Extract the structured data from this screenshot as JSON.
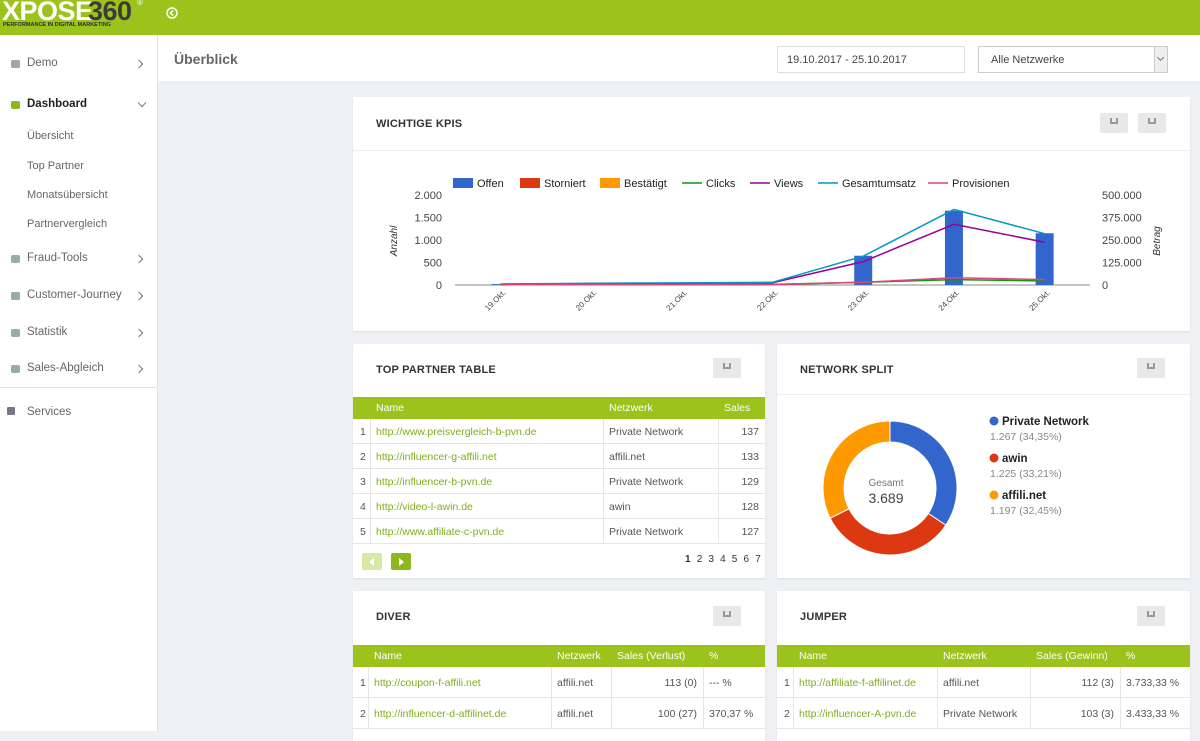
{
  "header": {
    "logo": [
      "XPOSE",
      "360",
      "®"
    ],
    "logo_tagline": "PERFORMANCE IN DIGITAL MARKETING"
  },
  "sidebar": {
    "items": [
      {
        "label": "Demo"
      },
      {
        "label": "Dashboard",
        "children": [
          "Übersicht",
          "Top Partner",
          "Monatsübersicht",
          "Partnervergleich"
        ]
      },
      {
        "label": "Fraud-Tools"
      },
      {
        "label": "Customer-Journey"
      },
      {
        "label": "Statistik"
      },
      {
        "label": "Sales-Abgleich"
      }
    ],
    "footer_item": "Services"
  },
  "toolbar": {
    "title": "Überblick",
    "date_range": "19.10.2017 - 25.10.2017",
    "network_filter": "Alle Netzwerke"
  },
  "panels": {
    "kpis": {
      "title": "WICHTIGE KPIS"
    },
    "top_partner": {
      "title": "TOP PARTNER TABLE",
      "columns": [
        "Name",
        "Netzwerk",
        "Sales"
      ],
      "rows": [
        [
          1,
          "http://www.preisvergleich-b-pvn.de",
          "Private Network",
          137
        ],
        [
          2,
          "http://influencer-g-affili.net",
          "affili.net",
          133
        ],
        [
          3,
          "http://influencer-b-pvn.de",
          "Private Network",
          129
        ],
        [
          4,
          "http://video-l-awin.de",
          "awin",
          128
        ],
        [
          5,
          "http://www.affiliate-c-pvn.de",
          "Private Network",
          127
        ]
      ],
      "pages": [
        1,
        2,
        3,
        4,
        5,
        6,
        7
      ]
    },
    "network_split": {
      "title": "NETWORK SPLIT"
    },
    "diver": {
      "title": "DIVER",
      "columns": [
        "Name",
        "Netzwerk",
        "Sales (Verlust)",
        "%"
      ],
      "rows": [
        [
          1,
          "http://coupon-f-affili.net",
          "affili.net",
          "113 (0)",
          "--- %"
        ],
        [
          2,
          "http://influencer-d-affilinet.de",
          "affili.net",
          "100 (27)",
          "370,37 %"
        ]
      ]
    },
    "jumper": {
      "title": "JUMPER",
      "columns": [
        "Name",
        "Netzwerk",
        "Sales (Gewinn)",
        "%"
      ],
      "rows": [
        [
          1,
          "http://affiliate-f-affilinet.de",
          "affili.net",
          "112 (3)",
          "3.733,33 %"
        ],
        [
          2,
          "http://influencer-A-pvn.de",
          "Private Network",
          "103 (3)",
          "3.433,33 %"
        ]
      ]
    }
  },
  "chart_data": [
    {
      "type": "combo",
      "ylabel": "Anzahl",
      "y2label": "Betrag",
      "categories": [
        "19.Okt.",
        "20.Okt.",
        "21.Okt.",
        "22.Okt.",
        "23.Okt.",
        "24.Okt.",
        "25.Okt."
      ],
      "series": [
        {
          "name": "Offen",
          "type": "bar",
          "color": "#3366cc",
          "values": [
            20,
            0,
            0,
            0,
            650,
            1650,
            1150
          ]
        },
        {
          "name": "Storniert",
          "type": "bar",
          "color": "#dc3912",
          "values": [
            0,
            0,
            0,
            0,
            0,
            0,
            0
          ]
        },
        {
          "name": "Bestätigt",
          "type": "bar",
          "color": "#ff9900",
          "values": [
            0,
            0,
            0,
            0,
            0,
            0,
            0
          ]
        },
        {
          "name": "Clicks",
          "type": "line",
          "color": "#109618",
          "values": [
            5,
            10,
            10,
            15,
            60,
            120,
            90
          ]
        },
        {
          "name": "Views",
          "type": "line",
          "color": "#990099",
          "values": [
            20,
            30,
            40,
            50,
            520,
            1350,
            950
          ]
        },
        {
          "name": "Gesamtumsatz",
          "type": "line",
          "axis": "y2",
          "color": "#0099c6",
          "values": [
            5000,
            10000,
            12000,
            15000,
            160000,
            420000,
            285000
          ]
        },
        {
          "name": "Provisionen",
          "type": "line",
          "axis": "y2",
          "color": "#dd4477",
          "values": [
            1000,
            1500,
            2000,
            2500,
            15000,
            40000,
            30000
          ]
        }
      ],
      "ylim": [
        0,
        2000
      ],
      "yticks": [
        0,
        500,
        {
          "value": 1000,
          "label": "1.000"
        },
        {
          "value": 1500,
          "label": "1.500"
        },
        {
          "value": 2000,
          "label": "2.000"
        }
      ],
      "y2lim": [
        0,
        500000
      ],
      "y2ticks": [
        0,
        {
          "value": 125000,
          "label": "125.000"
        },
        {
          "value": 250000,
          "label": "250.000"
        },
        {
          "value": 375000,
          "label": "375.000"
        },
        {
          "value": 500000,
          "label": "500.000"
        }
      ],
      "grid": false,
      "legend": "top"
    },
    {
      "type": "donut",
      "center_label": "Gesamt",
      "total": {
        "value": 3689,
        "label": "3.689"
      },
      "categories": [
        "Private Network",
        "awin",
        "affili.net"
      ],
      "values": [
        1267,
        1225,
        1197
      ],
      "value_labels": [
        "1.267 (34,35%)",
        "1.225 (33,21%)",
        "1.197 (32,45%)"
      ],
      "colors": [
        "#3366cc",
        "#dc3912",
        "#ff9900"
      ],
      "legend": "right"
    }
  ]
}
